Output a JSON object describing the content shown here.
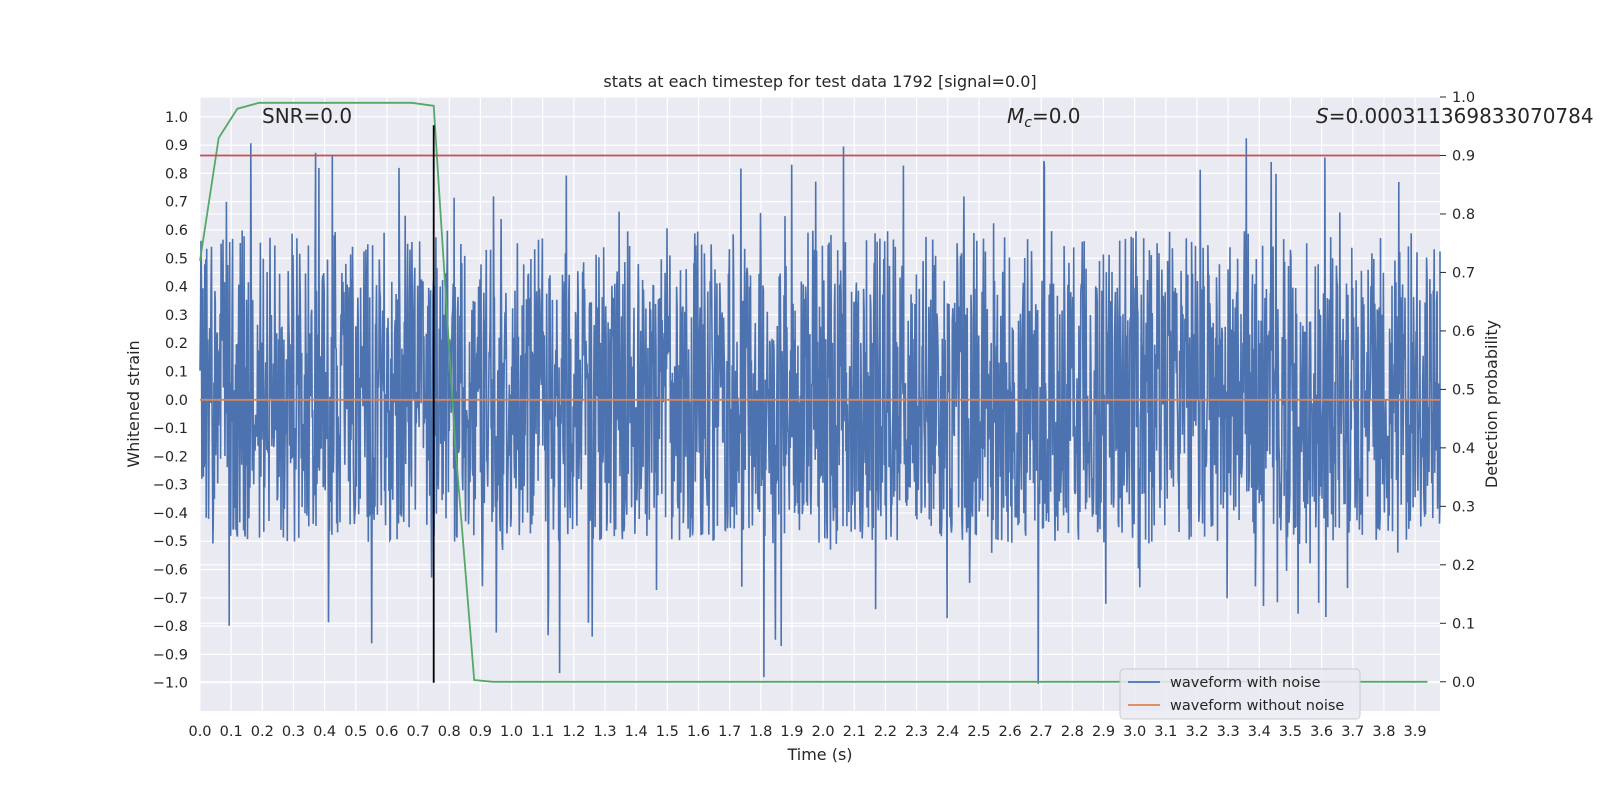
{
  "chart_data": {
    "type": "line",
    "title": "stats at each timestep for test data 1792 [signal=0.0]",
    "xlabel": "Time (s)",
    "ylabel": "Whitened strain",
    "y2label": "Detection probability",
    "xlim": [
      0.0,
      3.98
    ],
    "ylim": [
      -1.1,
      1.07
    ],
    "y2lim": [
      -0.05,
      1.0
    ],
    "x_ticks": [
      "0.0",
      "0.1",
      "0.2",
      "0.3",
      "0.4",
      "0.5",
      "0.6",
      "0.7",
      "0.8",
      "0.9",
      "1.0",
      "1.1",
      "1.2",
      "1.3",
      "1.4",
      "1.5",
      "1.6",
      "1.7",
      "1.8",
      "1.9",
      "2.0",
      "2.1",
      "2.2",
      "2.3",
      "2.4",
      "2.5",
      "2.6",
      "2.7",
      "2.8",
      "2.9",
      "3.0",
      "3.1",
      "3.2",
      "3.3",
      "3.4",
      "3.5",
      "3.6",
      "3.7",
      "3.8",
      "3.9"
    ],
    "y_ticks": [
      "1.0",
      "0.9",
      "0.8",
      "0.7",
      "0.6",
      "0.5",
      "0.4",
      "0.3",
      "0.2",
      "0.1",
      "0.0",
      "−0.1",
      "−0.2",
      "−0.3",
      "−0.4",
      "−0.5",
      "−0.6",
      "−0.7",
      "−0.8",
      "−0.9",
      "−1.0"
    ],
    "y2_ticks": [
      "1.0",
      "0.9",
      "0.8",
      "0.7",
      "0.6",
      "0.5",
      "0.4",
      "0.3",
      "0.2",
      "0.1",
      "0.0"
    ],
    "annotations": {
      "snr": "SNR=0.0",
      "mc_symbol": "M",
      "mc_sub": "c",
      "mc_value": "=0.0",
      "s_symbol": "S",
      "s_value": "=0.000311369833070784"
    },
    "legend": {
      "placement": "lower-right",
      "entries": [
        "waveform with noise",
        "waveform without noise"
      ]
    },
    "series": [
      {
        "name": "waveform with noise",
        "color": "#4c72b0",
        "axis": "left",
        "note": "dense noise from 0.0 to 4.0 s, typical range about -0.5 to 0.6, spikes to about 0.97 and -1.05",
        "duration": 4.0,
        "typical_min": -0.5,
        "typical_max": 0.6,
        "peak_max": 0.97,
        "peak_min": -1.05
      },
      {
        "name": "waveform without noise",
        "color": "#dd8452",
        "axis": "left",
        "x": [
          0.0,
          3.98
        ],
        "y": [
          0.0,
          0.0
        ]
      },
      {
        "name": "detection probability",
        "color": "#55a868",
        "axis": "right",
        "x": [
          0.0,
          0.06,
          0.12,
          0.19,
          0.25,
          0.31,
          0.5,
          0.68,
          0.75,
          0.82,
          0.88,
          0.94,
          1.0,
          2.0,
          3.0,
          3.94
        ],
        "y": [
          0.72,
          0.93,
          0.98,
          0.99,
          0.99,
          0.99,
          0.99,
          0.99,
          0.985,
          0.4,
          0.003,
          0.0,
          0.0,
          0.0,
          0.0,
          0.0
        ]
      },
      {
        "name": "threshold",
        "color": "#c44e52",
        "axis": "right",
        "x": [
          0.0,
          3.98
        ],
        "y": [
          0.9,
          0.9
        ]
      },
      {
        "name": "trigger marker",
        "color": "#000000",
        "axis": "left",
        "x": [
          0.75,
          0.75
        ],
        "y": [
          -1.0,
          0.97
        ]
      }
    ],
    "style": {
      "background": "#eaeaf2",
      "grid": "#ffffff",
      "text": "#262626"
    }
  }
}
